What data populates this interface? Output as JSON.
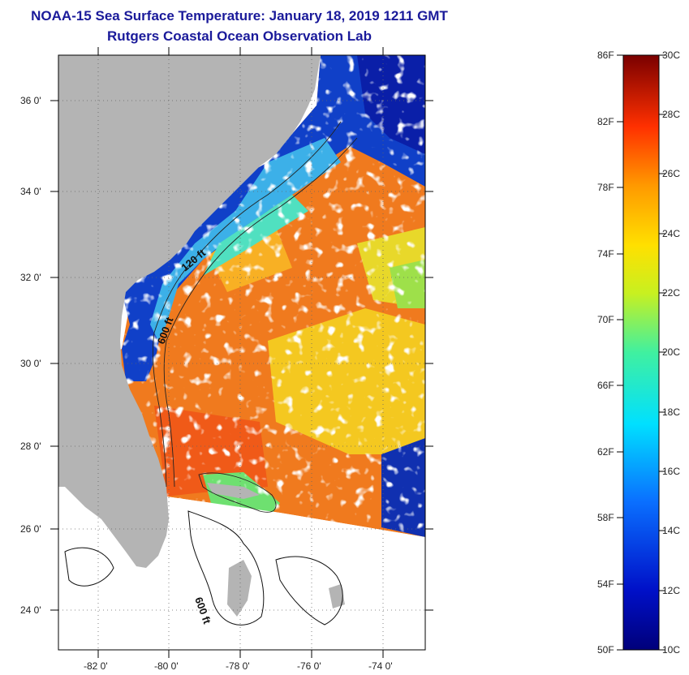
{
  "title_line1": "NOAA-15 Sea Surface Temperature:  January 18, 2019 1211 GMT",
  "title_line2": "Rutgers Coastal Ocean Observation Lab",
  "y_ticks": [
    "36 0'",
    "34 0'",
    "32 0'",
    "30 0'",
    "28 0'",
    "26 0'",
    "24 0'"
  ],
  "x_ticks": [
    "-82 0'",
    "-80 0'",
    "-78 0'",
    "-76 0'",
    "-74 0'"
  ],
  "contours": {
    "c120": "120 ft",
    "c600a": "600 ft",
    "c600b": "600 ft"
  },
  "colorbar": {
    "fahrenheit": [
      "86F",
      "82F",
      "78F",
      "74F",
      "70F",
      "66F",
      "62F",
      "58F",
      "54F",
      "50F"
    ],
    "celsius": [
      "30C",
      "28C",
      "26C",
      "24C",
      "22C",
      "20C",
      "18C",
      "16C",
      "14C",
      "12C",
      "10C"
    ]
  },
  "colors": {
    "land": "#b4b4b4",
    "title": "#1a1a9a",
    "warm": "#f07a1e",
    "cold": "#0a1fa8"
  }
}
